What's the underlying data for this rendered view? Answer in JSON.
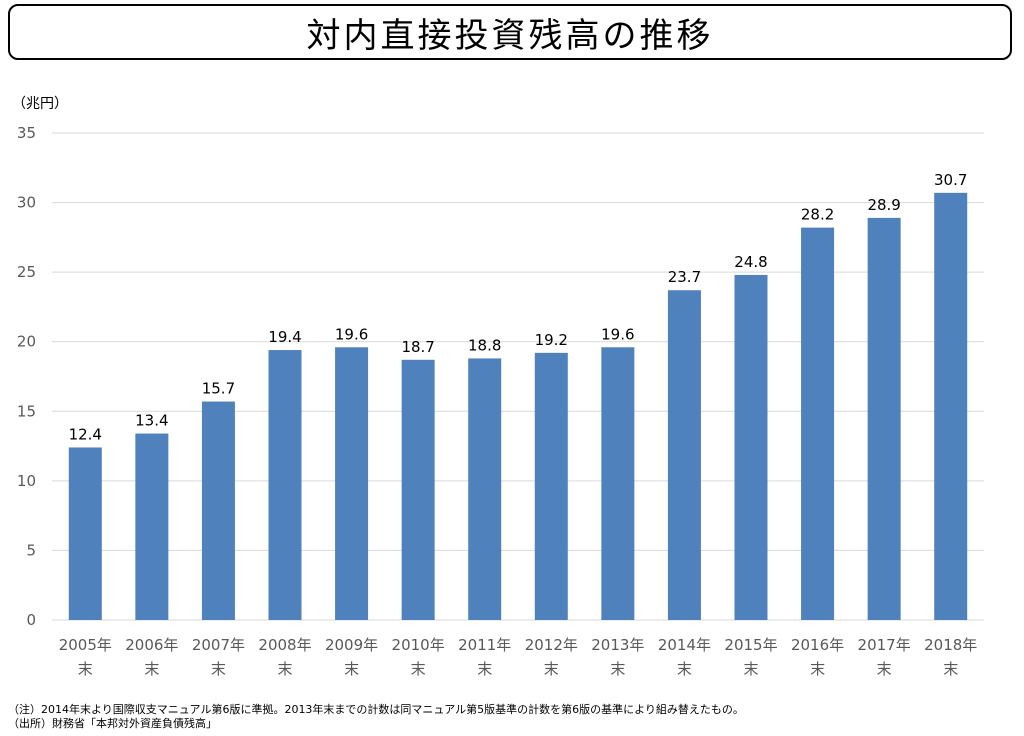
{
  "title": "対内直接投資残高の推移",
  "unit_label": "（兆円）",
  "notes": {
    "note": "（注）2014年末より国際収支マニュアル第6版に準拠。2013年末までの計数は同マニュアル第5版基準の計数を第6版の基準により組み替えたもの。",
    "source": "（出所）財務省「本邦対外資産負債残高」"
  },
  "colors": {
    "bar": "#4f81bd",
    "grid": "#d9d9d9",
    "axis_text": "#595959",
    "label_text": "#000000"
  },
  "chart_data": {
    "type": "bar",
    "title": "対内直接投資残高の推移",
    "ylabel": "（兆円）",
    "xlabel": "",
    "categories": [
      [
        "2005年",
        "末"
      ],
      [
        "2006年",
        "末"
      ],
      [
        "2007年",
        "末"
      ],
      [
        "2008年",
        "末"
      ],
      [
        "2009年",
        "末"
      ],
      [
        "2010年",
        "末"
      ],
      [
        "2011年",
        "末"
      ],
      [
        "2012年",
        "末"
      ],
      [
        "2013年",
        "末"
      ],
      [
        "2014年",
        "末"
      ],
      [
        "2015年",
        "末"
      ],
      [
        "2016年",
        "末"
      ],
      [
        "2017年",
        "末"
      ],
      [
        "2018年",
        "末"
      ]
    ],
    "values": [
      12.4,
      13.4,
      15.7,
      19.4,
      19.6,
      18.7,
      18.8,
      19.2,
      19.6,
      23.7,
      24.8,
      28.2,
      28.9,
      30.7
    ],
    "value_labels": [
      "12.4",
      "13.4",
      "15.7",
      "19.4",
      "19.6",
      "18.7",
      "18.8",
      "19.2",
      "19.6",
      "23.7",
      "24.8",
      "28.2",
      "28.9",
      "30.7"
    ],
    "yticks": [
      "0",
      "5",
      "10",
      "15",
      "20",
      "25",
      "30",
      "35"
    ],
    "ylim": [
      0,
      35
    ],
    "grid": true,
    "legend": "none"
  }
}
